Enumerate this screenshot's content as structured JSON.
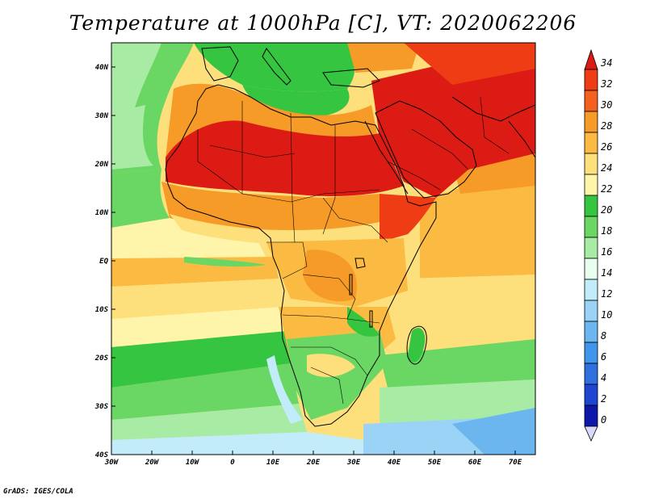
{
  "title": "Temperature at 1000hPa [C], VT: 2020062206",
  "credit": "GrADS: IGES/COLA",
  "map": {
    "lon_range": [
      -30,
      75
    ],
    "lat_range": [
      -40,
      45
    ],
    "lon_ticks": [
      "30W",
      "20W",
      "10W",
      "0",
      "10E",
      "20E",
      "30E",
      "40E",
      "50E",
      "60E",
      "70E"
    ],
    "lat_ticks": [
      "40N",
      "30N",
      "20N",
      "10N",
      "EQ",
      "10S",
      "20S",
      "30S",
      "40S"
    ]
  },
  "colorbar": {
    "labels": [
      "34",
      "32",
      "30",
      "28",
      "26",
      "24",
      "22",
      "20",
      "18",
      "16",
      "14",
      "12",
      "10",
      "8",
      "6",
      "4",
      "2",
      "0"
    ],
    "colors": [
      "#dc1c14",
      "#ee3c14",
      "#f4601e",
      "#f69a28",
      "#fbba42",
      "#fde07c",
      "#fff5aa",
      "#35c540",
      "#6ad663",
      "#a8eba4",
      "#e8fff0",
      "#c2ecfa",
      "#9ad3f5",
      "#6cb6ef",
      "#4195eb",
      "#2f6fde",
      "#1f46d1",
      "#0e18a8",
      "#0a0a6e"
    ]
  },
  "chart_data": {
    "type": "heatmap",
    "title": "Temperature at 1000hPa [C], VT: 2020062206",
    "variable": "Temperature at 1000hPa",
    "unit": "C",
    "valid_time": "2020062206",
    "x_ticks": [
      "30W",
      "20W",
      "10W",
      "0",
      "10E",
      "20E",
      "30E",
      "40E",
      "50E",
      "60E",
      "70E"
    ],
    "y_ticks": [
      "40N",
      "30N",
      "20N",
      "10N",
      "EQ",
      "10S",
      "20S",
      "30S",
      "40S"
    ],
    "xlim": [
      -30,
      75
    ],
    "ylim": [
      -40,
      45
    ],
    "colorbar_ticks": [
      0,
      2,
      4,
      6,
      8,
      10,
      12,
      14,
      16,
      18,
      20,
      22,
      24,
      26,
      28,
      30,
      32,
      34
    ],
    "grid": false
  }
}
